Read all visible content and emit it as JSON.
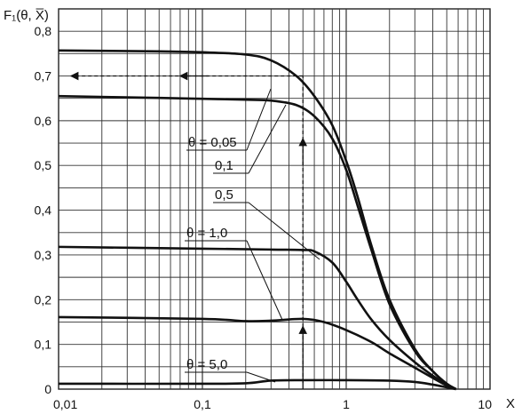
{
  "chart_data": {
    "type": "line",
    "title": "",
    "ylabel": "F₁(θ, X̅)",
    "xlabel": "X",
    "x_scale": "log",
    "xlim": [
      0.01,
      10
    ],
    "ylim": [
      0,
      0.85
    ],
    "x_ticks": [
      0.01,
      0.1,
      1,
      10
    ],
    "x_tick_labels": [
      "0,01",
      "0,1",
      "1",
      "10"
    ],
    "y_ticks": [
      0,
      0.1,
      0.2,
      0.3,
      0.4,
      0.5,
      0.6,
      0.7,
      0.8
    ],
    "y_tick_labels": [
      "0",
      "0,1",
      "0,2",
      "0,3",
      "0,4",
      "0,5",
      "0,6",
      "0,7",
      "0,8"
    ],
    "grid": true,
    "series": [
      {
        "name": "θ = 0,05",
        "x": [
          0.01,
          0.05,
          0.1,
          0.2,
          0.3,
          0.45,
          0.6,
          0.8,
          1.0,
          1.2,
          1.5,
          2.0,
          3.0,
          4.0,
          5.0,
          5.8
        ],
        "y": [
          0.757,
          0.755,
          0.753,
          0.748,
          0.735,
          0.7,
          0.655,
          0.59,
          0.51,
          0.43,
          0.32,
          0.2,
          0.09,
          0.04,
          0.012,
          0.0
        ]
      },
      {
        "name": "0,1",
        "x": [
          0.01,
          0.05,
          0.1,
          0.2,
          0.3,
          0.45,
          0.6,
          0.8,
          1.0,
          1.2,
          1.5,
          2.0,
          3.0,
          4.0,
          5.0,
          5.8
        ],
        "y": [
          0.655,
          0.651,
          0.649,
          0.647,
          0.645,
          0.635,
          0.61,
          0.56,
          0.49,
          0.41,
          0.31,
          0.19,
          0.085,
          0.04,
          0.012,
          0.0
        ]
      },
      {
        "name": "0,5",
        "x": [
          0.01,
          0.1,
          0.3,
          0.5,
          0.6,
          0.8,
          1.0,
          1.2,
          1.5,
          2.0,
          3.0,
          4.0,
          5.0,
          5.8
        ],
        "y": [
          0.318,
          0.314,
          0.312,
          0.311,
          0.308,
          0.283,
          0.24,
          0.2,
          0.155,
          0.11,
          0.06,
          0.03,
          0.01,
          0.0
        ]
      },
      {
        "name": "θ = 1,0",
        "x": [
          0.01,
          0.1,
          0.2,
          0.3,
          0.5,
          0.7,
          1.0,
          1.5,
          2.0,
          3.0,
          4.0,
          5.0,
          5.8
        ],
        "y": [
          0.161,
          0.157,
          0.152,
          0.153,
          0.157,
          0.15,
          0.132,
          0.105,
          0.08,
          0.048,
          0.025,
          0.008,
          0.0
        ]
      },
      {
        "name": "θ = 5,0",
        "x": [
          0.01,
          0.1,
          0.2,
          0.3,
          0.5,
          1.0,
          2.0,
          3.0,
          4.0,
          5.0,
          5.8
        ],
        "y": [
          0.012,
          0.012,
          0.013,
          0.019,
          0.02,
          0.02,
          0.019,
          0.016,
          0.01,
          0.004,
          0.0
        ]
      }
    ],
    "annotations": [
      {
        "text": "θ = 0,05",
        "points_to_series": "θ = 0,05"
      },
      {
        "text": "0,1",
        "points_to_series": "0,1"
      },
      {
        "text": "0,5",
        "points_to_series": "0,5"
      },
      {
        "text": "θ = 1,0",
        "points_to_series": "θ = 1,0"
      },
      {
        "text": "θ = 5,0",
        "points_to_series": "θ = 5,0"
      }
    ],
    "reference_lines": {
      "dashed_vertical_x": 0.5,
      "dashed_horizontal_y": 0.7,
      "arrow_to_y_axis": true
    }
  }
}
